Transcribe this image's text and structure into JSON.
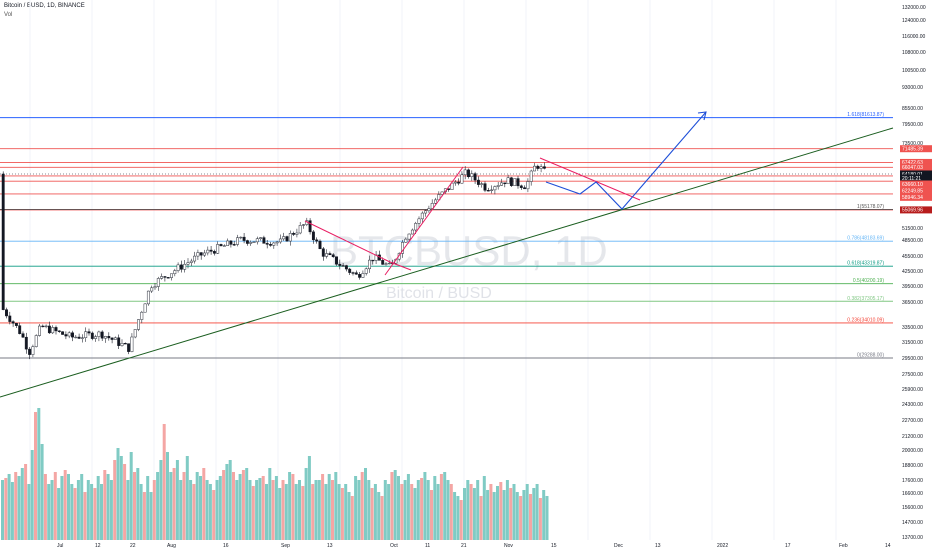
{
  "header": {
    "title": "Bitcoin / BUSD, 1D, BINANCE",
    "volume_label": "Vol"
  },
  "watermark": {
    "symbol": "BTCBUSD, 1D",
    "name": "Bitcoin / BUSD"
  },
  "colors": {
    "up": "#26a69a",
    "down": "#ef5350",
    "bar_up": "#2a2e39",
    "bar_down": "#131722",
    "trend": "#1b5e20",
    "path_blue": "#1e4fd8",
    "pink": "#e91e63",
    "fib_blue": "#2962ff"
  },
  "chart_data": {
    "type": "candlestick",
    "title": "Bitcoin / BUSD, 1D, BINANCE",
    "y_axis": {
      "currency": "BUSD",
      "ticks": [
        "132000.00",
        "124000.00",
        "116000.00",
        "108000.00",
        "100500.00",
        "93000.00",
        "85500.00",
        "79500.00",
        "73500.00",
        "61500.00",
        "51500.00",
        "48500.00",
        "45500.00",
        "42500.00",
        "39500.00",
        "36500.00",
        "33500.00",
        "31500.00",
        "29500.00",
        "27500.00",
        "25900.00",
        "24300.00",
        "22700.00",
        "21200.00",
        "20000.00",
        "18800.00",
        "17600.00",
        "16600.00",
        "15600.00",
        "14700.00",
        "13700.00"
      ],
      "scale": "log"
    },
    "x_axis": {
      "ticks": [
        "Jul",
        "12",
        "22",
        "Aug",
        "16",
        "Sep",
        "13",
        "Oct",
        "11",
        "21",
        "Nov",
        "15",
        "Dec",
        "13",
        "2022",
        "17",
        "Feb",
        "14"
      ]
    },
    "price_tags": [
      {
        "label": "71485.39",
        "price": 71485.39,
        "color": "#ef5350"
      },
      {
        "label": "67422.63",
        "price": 67422.63,
        "color": "#ef5350"
      },
      {
        "label": "66047.03",
        "price": 66047.03,
        "color": "#ef5350"
      },
      {
        "label": "64180.01",
        "price": 64180.01,
        "color": "#131722"
      },
      {
        "label": "20:11:21",
        "price": 63100,
        "color": "#131722"
      },
      {
        "label": "63660.10",
        "price": 61500,
        "color": "#ef5350"
      },
      {
        "label": "62249.85",
        "price": 59800,
        "color": "#ef5350"
      },
      {
        "label": "58946.34",
        "price": 58100,
        "color": "#ef5350"
      },
      {
        "label": "55069.96",
        "price": 55069.96,
        "color": "#b71c1c"
      }
    ],
    "fib_levels": [
      {
        "label": "1.618(81613.87)",
        "price": 81613.87,
        "color": "#2962ff"
      },
      {
        "label": "1(55178.07)",
        "price": 55178.07,
        "color": "#555555"
      },
      {
        "label": "0.786(48183.69)",
        "price": 48183.69,
        "color": "#64b5f6"
      },
      {
        "label": "0.618(43319.87)",
        "price": 43319.87,
        "color": "#089981"
      },
      {
        "label": "0.5(40200.19)",
        "price": 40200.19,
        "color": "#4caf50"
      },
      {
        "label": "0.382(37305.17)",
        "price": 37305.17,
        "color": "#81c784"
      },
      {
        "label": "0.236(34010.09)",
        "price": 34010.09,
        "color": "#f44336"
      },
      {
        "label": "0(29288.00)",
        "price": 29288.0,
        "color": "#787b86"
      }
    ],
    "resistance_lines": [
      71485.39,
      67422.63,
      66047.03,
      63660.1,
      62249.85,
      58946.34,
      55069.96
    ],
    "volume_values": [
      30,
      31,
      33,
      29,
      34,
      32,
      36,
      38,
      28,
      45,
      64,
      66,
      48,
      33,
      28,
      30,
      34,
      26,
      32,
      35,
      33,
      28,
      26,
      30,
      33,
      24,
      30,
      28,
      26,
      32,
      28,
      35,
      33,
      30,
      40,
      46,
      42,
      38,
      30,
      44,
      34,
      36,
      28,
      24,
      32,
      24,
      30,
      34,
      40,
      58,
      44,
      34,
      36,
      40,
      30,
      34,
      42,
      30,
      28,
      34,
      32,
      36,
      30,
      28,
      25,
      30,
      32,
      35,
      38,
      40,
      34,
      30,
      33,
      35,
      36,
      30,
      27,
      30,
      31,
      32,
      28,
      36,
      30,
      32,
      26,
      30,
      28,
      34,
      33,
      28,
      30,
      27,
      36,
      42,
      28,
      30,
      30,
      33,
      28,
      33,
      30,
      34,
      28,
      26,
      28,
      24,
      22,
      32,
      30,
      34,
      36,
      30,
      26,
      28,
      24,
      22,
      30,
      28,
      34,
      35,
      32,
      28,
      30,
      33,
      28,
      26,
      30,
      31,
      34,
      30,
      25,
      32,
      28,
      33,
      34,
      30,
      28,
      24,
      22,
      20,
      26,
      30,
      28,
      26,
      30,
      22,
      32,
      25,
      28,
      24,
      27,
      29,
      25,
      30,
      26,
      28,
      24,
      22,
      25,
      28,
      23,
      26,
      28,
      21,
      25,
      22
    ],
    "series_note": ""
  }
}
